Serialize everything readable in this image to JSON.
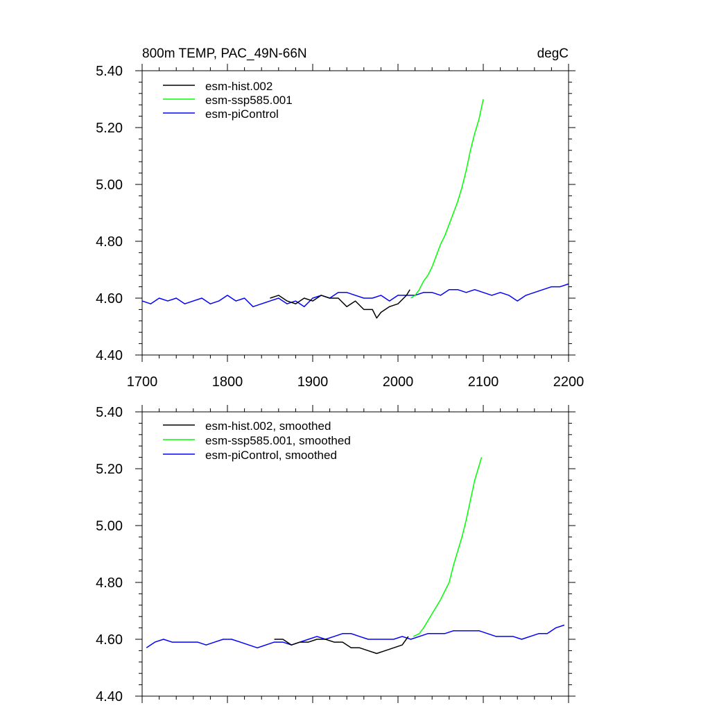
{
  "chart_data": [
    {
      "type": "line",
      "title_left": "800m TEMP, PAC_49N-66N",
      "title_right": "degC",
      "xlim": [
        1700,
        2200
      ],
      "ylim": [
        4.4,
        5.4
      ],
      "xticks": [
        1700,
        1800,
        1900,
        2000,
        2100,
        2200
      ],
      "xtick_labels": [
        "1700",
        "1800",
        "1900",
        "2000",
        "2100",
        "2200"
      ],
      "yticks": [
        4.4,
        4.6,
        4.8,
        5.0,
        5.2,
        5.4
      ],
      "ytick_labels": [
        "4.40",
        "4.60",
        "4.80",
        "5.00",
        "5.20",
        "5.40"
      ],
      "legend_position": "top-left",
      "series": [
        {
          "name": "esm-hist.002",
          "color": "#000000",
          "x": [
            1850,
            1860,
            1870,
            1880,
            1890,
            1900,
            1910,
            1920,
            1930,
            1940,
            1950,
            1960,
            1970,
            1975,
            1980,
            1990,
            2000,
            2010,
            2014
          ],
          "y": [
            4.6,
            4.61,
            4.59,
            4.58,
            4.6,
            4.59,
            4.61,
            4.6,
            4.6,
            4.57,
            4.59,
            4.56,
            4.56,
            4.53,
            4.55,
            4.57,
            4.58,
            4.61,
            4.63
          ]
        },
        {
          "name": "esm-ssp585.001",
          "color": "#00ff00",
          "x": [
            2015,
            2020,
            2025,
            2030,
            2035,
            2040,
            2045,
            2050,
            2055,
            2060,
            2065,
            2070,
            2075,
            2080,
            2085,
            2090,
            2095,
            2100
          ],
          "y": [
            4.6,
            4.61,
            4.63,
            4.66,
            4.68,
            4.71,
            4.75,
            4.79,
            4.82,
            4.86,
            4.9,
            4.94,
            4.99,
            5.05,
            5.12,
            5.18,
            5.23,
            5.3
          ]
        },
        {
          "name": "esm-piControl",
          "color": "#0000ff",
          "x": [
            1700,
            1710,
            1720,
            1730,
            1740,
            1750,
            1760,
            1770,
            1780,
            1790,
            1800,
            1810,
            1820,
            1830,
            1840,
            1850,
            1860,
            1870,
            1880,
            1890,
            1900,
            1910,
            1920,
            1930,
            1940,
            1950,
            1960,
            1970,
            1980,
            1990,
            2000,
            2010,
            2020,
            2030,
            2040,
            2050,
            2060,
            2070,
            2080,
            2090,
            2100,
            2110,
            2120,
            2130,
            2140,
            2150,
            2160,
            2170,
            2180,
            2190,
            2200
          ],
          "y": [
            4.59,
            4.58,
            4.6,
            4.59,
            4.6,
            4.58,
            4.59,
            4.6,
            4.58,
            4.59,
            4.61,
            4.59,
            4.6,
            4.57,
            4.58,
            4.59,
            4.6,
            4.58,
            4.59,
            4.57,
            4.6,
            4.61,
            4.6,
            4.62,
            4.62,
            4.61,
            4.6,
            4.6,
            4.61,
            4.59,
            4.61,
            4.61,
            4.61,
            4.62,
            4.62,
            4.61,
            4.63,
            4.63,
            4.62,
            4.63,
            4.62,
            4.61,
            4.62,
            4.61,
            4.59,
            4.61,
            4.62,
            4.63,
            4.64,
            4.64,
            4.65
          ]
        }
      ]
    },
    {
      "type": "line",
      "xlim": [
        1700,
        2200
      ],
      "ylim": [
        4.4,
        5.4
      ],
      "xticks": [
        1700,
        1800,
        1900,
        2000,
        2100,
        2200
      ],
      "yticks": [
        4.4,
        4.6,
        4.8,
        5.0,
        5.2,
        5.4
      ],
      "ytick_labels": [
        "4.40",
        "4.60",
        "4.80",
        "5.00",
        "5.20",
        "5.40"
      ],
      "legend_position": "top-left",
      "series": [
        {
          "name": "esm-hist.002, smoothed",
          "color": "#000000",
          "x": [
            1855,
            1865,
            1875,
            1885,
            1895,
            1905,
            1915,
            1925,
            1935,
            1945,
            1955,
            1965,
            1975,
            1985,
            1995,
            2005,
            2012
          ],
          "y": [
            4.6,
            4.6,
            4.58,
            4.59,
            4.59,
            4.6,
            4.6,
            4.59,
            4.59,
            4.57,
            4.57,
            4.56,
            4.55,
            4.56,
            4.57,
            4.58,
            4.61
          ]
        },
        {
          "name": "esm-ssp585.001, smoothed",
          "color": "#00ff00",
          "x": [
            2018,
            2025,
            2030,
            2040,
            2050,
            2055,
            2060,
            2065,
            2070,
            2075,
            2080,
            2085,
            2090,
            2095,
            2098
          ],
          "y": [
            4.61,
            4.62,
            4.64,
            4.69,
            4.74,
            4.77,
            4.8,
            4.86,
            4.91,
            4.96,
            5.02,
            5.09,
            5.16,
            5.21,
            5.24
          ]
        },
        {
          "name": "esm-piControl, smoothed",
          "color": "#0000ff",
          "x": [
            1705,
            1715,
            1725,
            1735,
            1745,
            1755,
            1765,
            1775,
            1785,
            1795,
            1805,
            1815,
            1825,
            1835,
            1845,
            1855,
            1865,
            1875,
            1885,
            1895,
            1905,
            1915,
            1925,
            1935,
            1945,
            1955,
            1965,
            1975,
            1985,
            1995,
            2005,
            2015,
            2025,
            2035,
            2045,
            2055,
            2065,
            2075,
            2085,
            2095,
            2105,
            2115,
            2125,
            2135,
            2145,
            2155,
            2165,
            2175,
            2185,
            2195
          ],
          "y": [
            4.57,
            4.59,
            4.6,
            4.59,
            4.59,
            4.59,
            4.59,
            4.58,
            4.59,
            4.6,
            4.6,
            4.59,
            4.58,
            4.57,
            4.58,
            4.59,
            4.59,
            4.58,
            4.59,
            4.6,
            4.61,
            4.6,
            4.61,
            4.62,
            4.62,
            4.61,
            4.6,
            4.6,
            4.6,
            4.6,
            4.61,
            4.6,
            4.61,
            4.62,
            4.62,
            4.62,
            4.63,
            4.63,
            4.63,
            4.63,
            4.62,
            4.61,
            4.61,
            4.61,
            4.6,
            4.61,
            4.62,
            4.62,
            4.64,
            4.65
          ]
        }
      ]
    }
  ]
}
